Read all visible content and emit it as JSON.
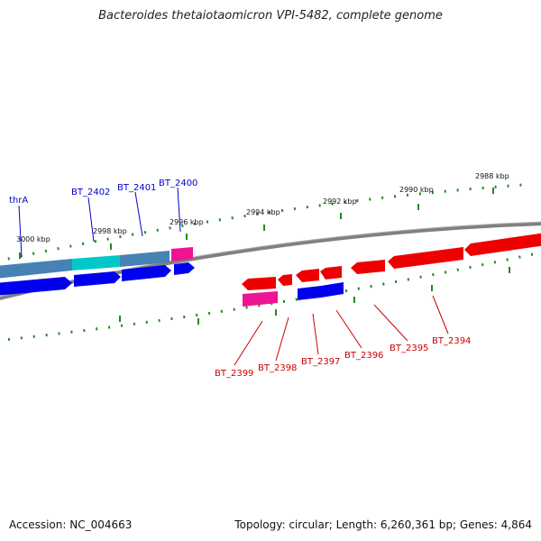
{
  "title": "Bacteroides thetaiotaomicron VPI-5482, complete genome",
  "accession": "Accession: NC_004663",
  "summary": "Topology: circular; Length: 6,260,361 bp; Genes: 4,864",
  "colors": {
    "backbone": "#808080",
    "tick": "#228b22",
    "gene_blue": "#0000ee",
    "gene_red": "#ee0000",
    "gene_steel": "#4682b4",
    "gene_cyan": "#00c8c8",
    "gene_magenta": "#ee1493",
    "label_blue": "#0000cc",
    "label_red": "#cc0000"
  },
  "tick_labels": [
    "3000 kbp",
    "2998 kbp",
    "2996 kbp",
    "2994 kbp",
    "2992 kbp",
    "2990 kbp",
    "2988 kbp"
  ],
  "labels_top": [
    "thrA",
    "BT_2402",
    "BT_2401",
    "BT_2400"
  ],
  "labels_bottom": [
    "BT_2399",
    "BT_2398",
    "BT_2397",
    "BT_2396",
    "BT_2395",
    "BT_2394"
  ]
}
